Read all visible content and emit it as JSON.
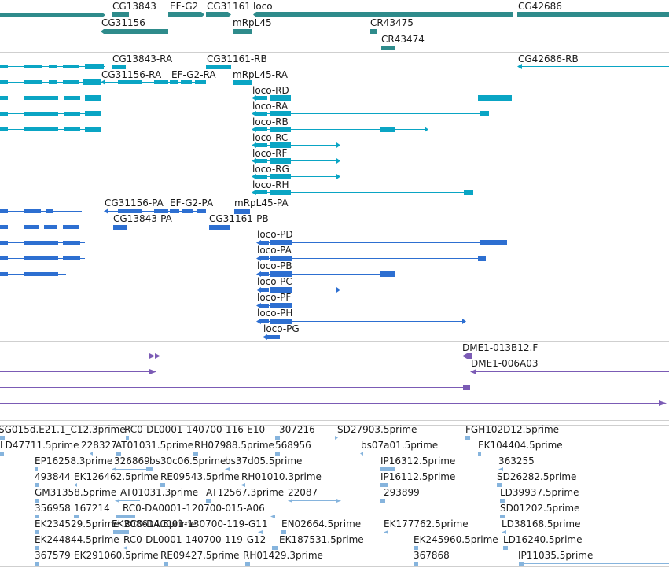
{
  "colors": {
    "gene": "#2e8b8b",
    "transcript": "#0aa5c4",
    "protein": "#2d6fd1",
    "clone": "#7b5bb5",
    "est": "#86b4dd",
    "text": "#1a1a1a",
    "divider": "#cfcfcf"
  },
  "tracks": {
    "genes": {
      "labels": [
        "CG13843",
        "EF-G2",
        "CG31161",
        "loco",
        "CG42686",
        "CG31156",
        "mRpL45",
        "CR43475",
        "CR43474"
      ]
    },
    "transcripts": {
      "labels": [
        "CG13843-RA",
        "CG31161-RB",
        "CG42686-RB",
        "CG31156-RA",
        "EF-G2-RA",
        "mRpL45-RA",
        "loco-RD",
        "loco-RA",
        "loco-RB",
        "loco-RC",
        "loco-RF",
        "loco-RG",
        "loco-RH"
      ]
    },
    "proteins": {
      "labels": [
        "CG31156-PA",
        "EF-G2-PA",
        "mRpL45-PA",
        "CG13843-PA",
        "CG31161-PB",
        "loco-PD",
        "loco-PA",
        "loco-PB",
        "loco-PC",
        "loco-PF",
        "loco-PH",
        "loco-PG"
      ]
    },
    "clones": {
      "labels": [
        "DME1-013B12.F",
        "DME1-006A03"
      ]
    },
    "ests": {
      "labels": [
        "SG015d.E21.1_C12.3prime",
        "RC0-DL0001-140700-116-E10",
        "307216",
        "SD27903.5prime",
        "FGH102D12.5prime",
        "LD47711.5prime",
        "228327",
        "AT01031.5prime",
        "RH07988.5prime",
        "568956",
        "bs07a01.5prime",
        "EK104404.5prime",
        "EP16258.3prime",
        "326869",
        "bs30c06.5prime",
        "bs37d05.5prime",
        "IP16312.5prime",
        "363255",
        "493844",
        "EK126462.5prime",
        "RE09543.5prime",
        "RH01010.3prime",
        "IP16112.5prime",
        "SD26282.5prime",
        "GM31358.5prime",
        "AT01031.3prime",
        "AT12567.3prime",
        "22087",
        "293899",
        "LD39937.5prime",
        "356958",
        "167214",
        "RC0-DA0001-120700-015-A06",
        "SD01202.5prime",
        "EK234529.5prime",
        "EK208614.5prime",
        "RC0-DA0001-130700-119-G11",
        "EN02664.5prime",
        "EK177762.5prime",
        "LD38168.5prime",
        "EK244844.5prime",
        "RC0-DL0001-140700-119-G12",
        "EK187531.5prime",
        "EK245960.5prime",
        "LD16240.5prime",
        "367579",
        "EK291060.5prime",
        "RE09427.5prime",
        "RH01429.3prime",
        "367868",
        "IP11035.5prime"
      ]
    }
  }
}
